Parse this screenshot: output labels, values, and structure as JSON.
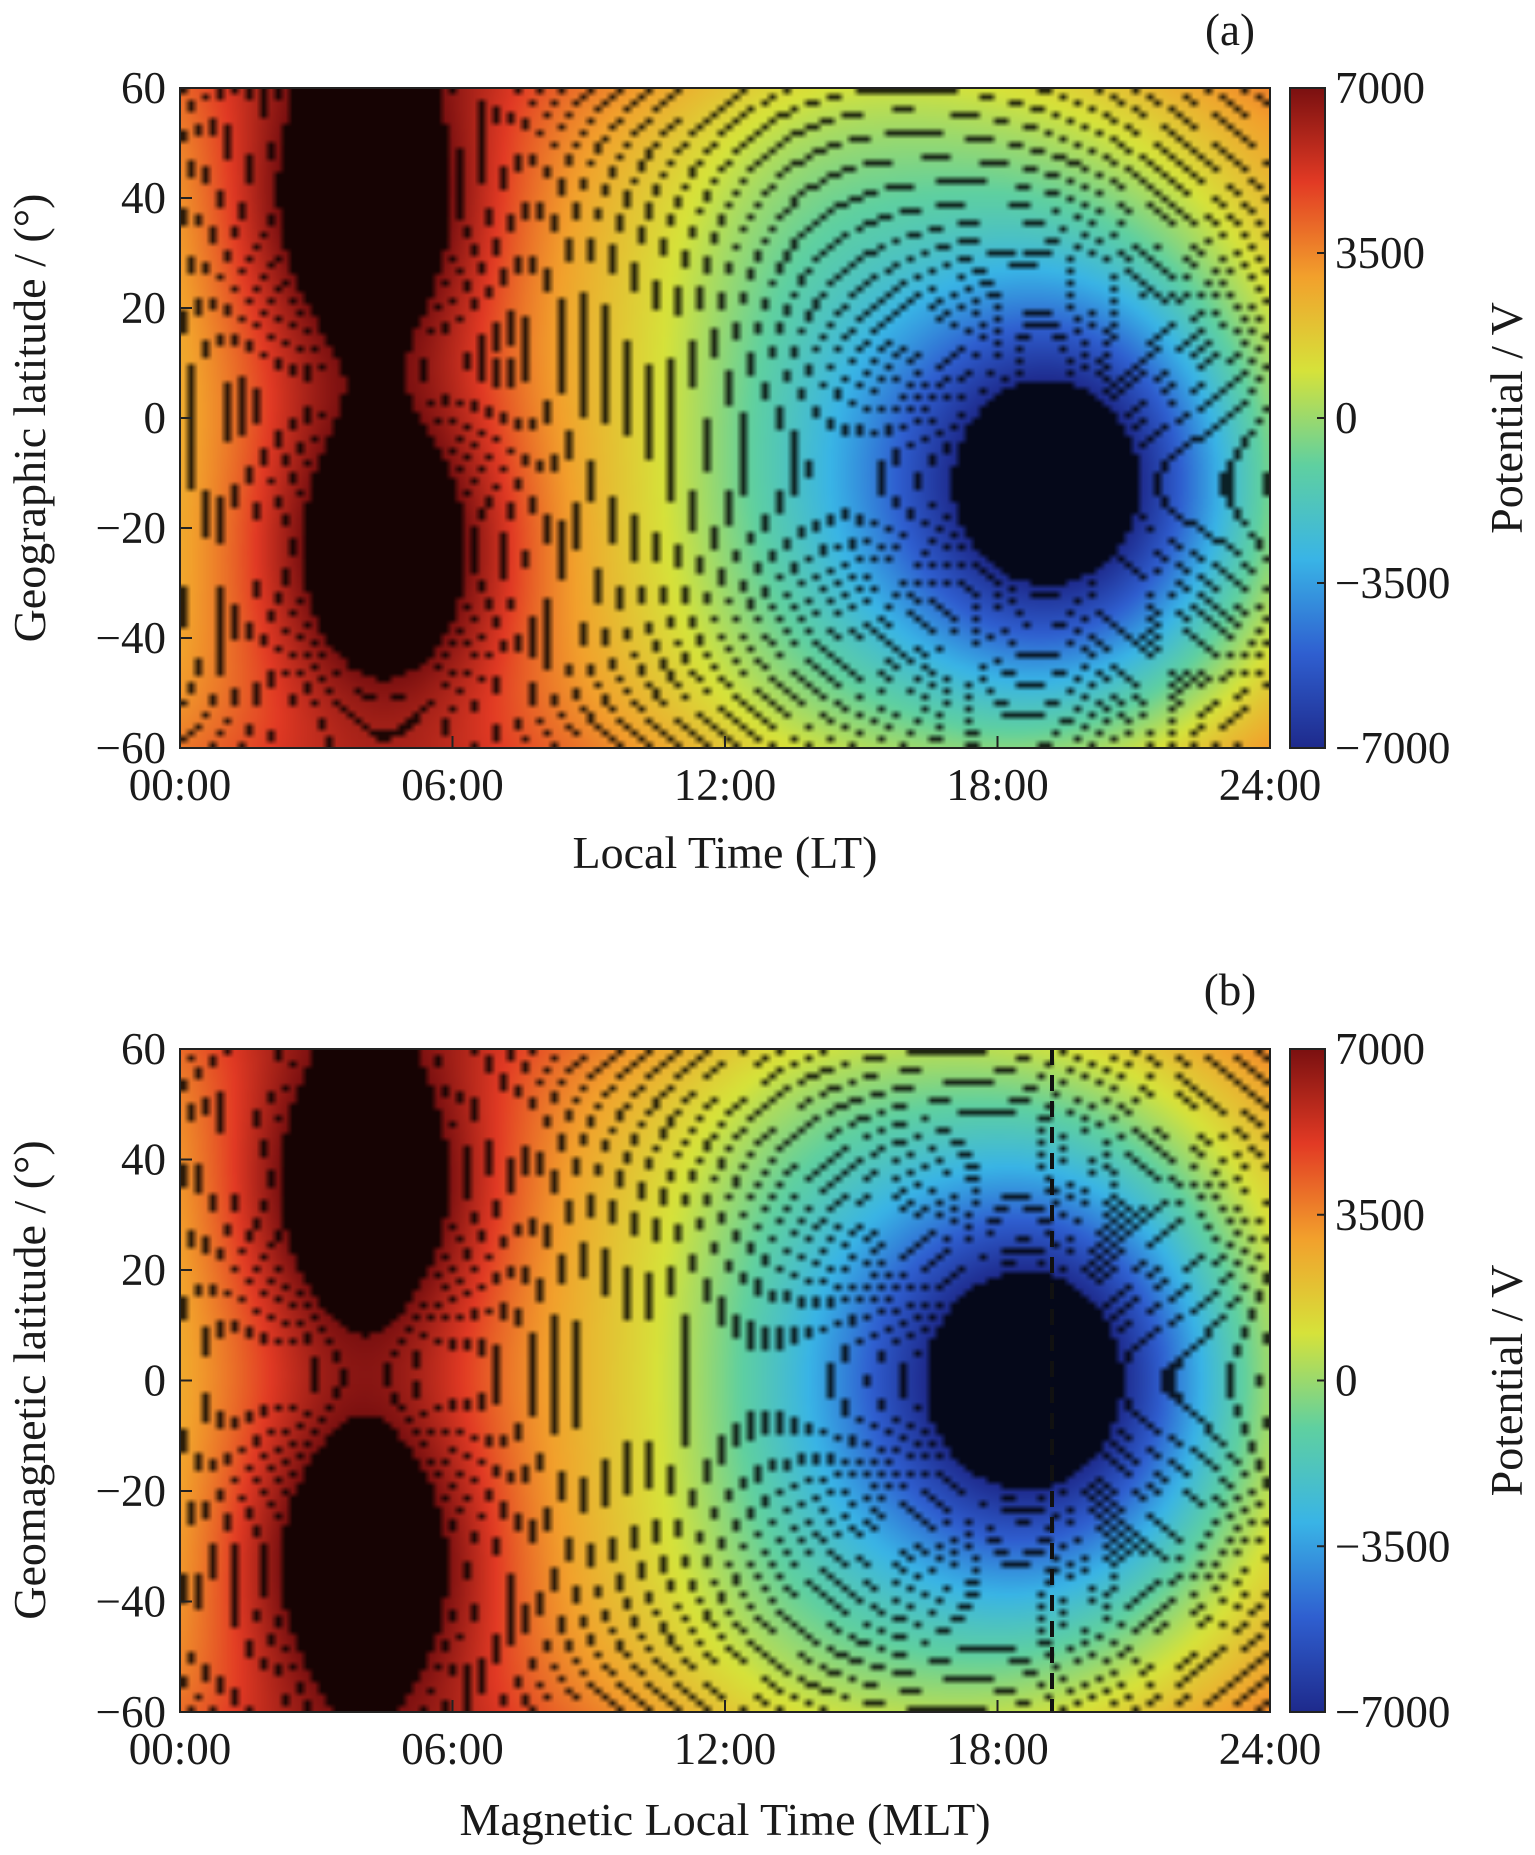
{
  "chart_data": [
    {
      "type": "heatmap",
      "panel_label": "(a)",
      "xlabel": "Local Time (LT)",
      "ylabel": "Geographic latitude / (°)",
      "colorbar_label": "Potential / V",
      "x_ticks": [
        "00:00",
        "06:00",
        "12:00",
        "18:00",
        "24:00"
      ],
      "y_ticks": [
        "60",
        "40",
        "20",
        "0",
        "−20",
        "−40",
        "−60"
      ],
      "colorbar_ticks": [
        "7000",
        "3500",
        "0",
        "−3500",
        "−7000"
      ],
      "xlim_hours": [
        0,
        24
      ],
      "ylim_degrees": [
        -60,
        60
      ],
      "clim_volts": [
        -7000,
        7000
      ],
      "colormap": [
        "#1e2a8c",
        "#2f5fd0",
        "#39b4e6",
        "#5fd0a0",
        "#d6e23a",
        "#f2a02c",
        "#e23a24",
        "#7a1010"
      ],
      "contour_lines": true,
      "contour_color": "#111111",
      "extrema": [
        {
          "kind": "max",
          "local_time_h": 4.0,
          "latitude_deg": 38,
          "potential_v": 7000
        },
        {
          "kind": "max",
          "local_time_h": 4.5,
          "latitude_deg": -24,
          "potential_v": 7000
        },
        {
          "kind": "min",
          "local_time_h": 19.5,
          "latitude_deg": -12,
          "potential_v": -7000
        }
      ]
    },
    {
      "type": "heatmap",
      "panel_label": "(b)",
      "xlabel": "Magnetic Local Time (MLT)",
      "ylabel": "Geomagnetic latitude  / (°)",
      "colorbar_label": "Potential / V",
      "x_ticks": [
        "00:00",
        "06:00",
        "12:00",
        "18:00",
        "24:00"
      ],
      "y_ticks": [
        "60",
        "40",
        "20",
        "0",
        "−20",
        "−40",
        "−60"
      ],
      "colorbar_ticks": [
        "7000",
        "3500",
        "0",
        "−3500",
        "−7000"
      ],
      "xlim_hours": [
        0,
        24
      ],
      "ylim_degrees": [
        -60,
        60
      ],
      "clim_volts": [
        -7000,
        7000
      ],
      "colormap": [
        "#1e2a8c",
        "#2f5fd0",
        "#39b4e6",
        "#5fd0a0",
        "#d6e23a",
        "#f2a02c",
        "#e23a24",
        "#7a1010"
      ],
      "contour_lines": true,
      "contour_color": "#111111",
      "dashed_line_mlt_h": 19.2,
      "extrema": [
        {
          "kind": "max",
          "local_time_h": 4.0,
          "latitude_deg": 34,
          "potential_v": 7000
        },
        {
          "kind": "max",
          "local_time_h": 4.0,
          "latitude_deg": -32,
          "potential_v": 7000
        },
        {
          "kind": "min",
          "local_time_h": 19.0,
          "latitude_deg": 0,
          "potential_v": -7000
        }
      ]
    }
  ]
}
